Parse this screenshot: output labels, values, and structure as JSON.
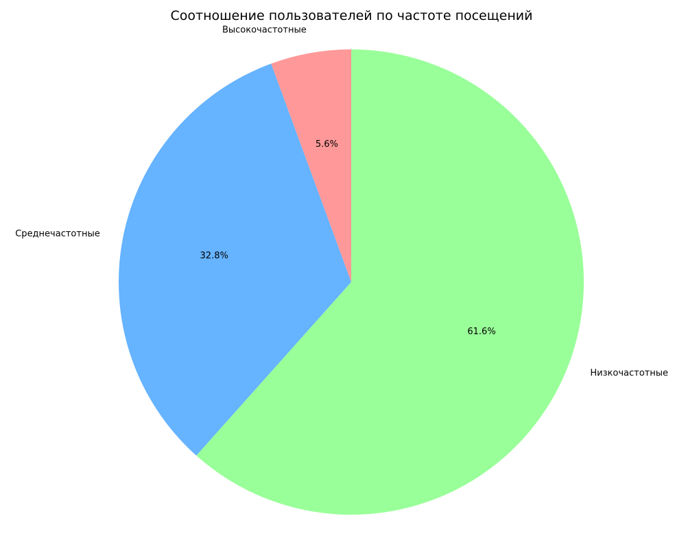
{
  "chart_data": {
    "type": "pie",
    "title": "Соотношение пользователей по частоте посещений",
    "slices": [
      {
        "label": "Высокочастотные",
        "value": 5.6,
        "pct_label": "5.6%",
        "color": "#ff9999"
      },
      {
        "label": "Среднечастотные",
        "value": 32.8,
        "pct_label": "32.8%",
        "color": "#66b3ff"
      },
      {
        "label": "Низкочастотные",
        "value": 61.6,
        "pct_label": "61.6%",
        "color": "#99ff99"
      }
    ],
    "start_angle": "top (90°), counter-clockwise",
    "legend": "none"
  }
}
